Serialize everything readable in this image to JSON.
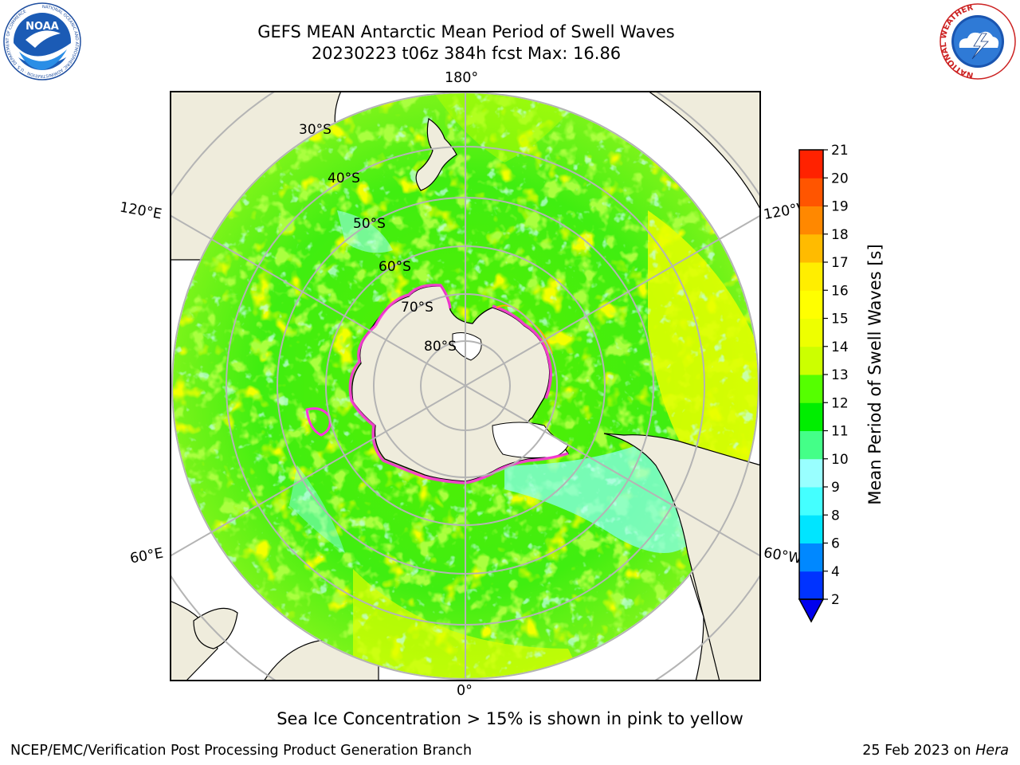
{
  "header": {
    "title_line1": "GEFS MEAN Antarctic Mean Period of Swell Waves",
    "title_line2": "20230223 t06z 384h fcst   Max: 16.86"
  },
  "logos": {
    "noaa_text": "NOAA",
    "noaa_ring_text": "NATIONAL OCEANIC AND ATMOSPHERIC ADMINISTRATION · U.S. DEPARTMENT OF COMMERCE",
    "nws_ring_text": "NATIONAL WEATHER SERVICE"
  },
  "map": {
    "projection": "south-polar-stereographic",
    "longitude_labels": [
      "180°",
      "120°E",
      "120°W",
      "60°E",
      "60°W",
      "0°"
    ],
    "latitude_labels": [
      "30°S",
      "40°S",
      "50°S",
      "60°S",
      "70°S",
      "80°S"
    ]
  },
  "colorbar": {
    "label": "Mean Period of Swell Waves [s]",
    "ticks": [
      "2",
      "4",
      "6",
      "8",
      "9",
      "10",
      "11",
      "12",
      "13",
      "14",
      "15",
      "16",
      "17",
      "18",
      "19",
      "20",
      "21"
    ],
    "colors": [
      "#0033ff",
      "#0088ff",
      "#00e5ff",
      "#44ffff",
      "#99ffff",
      "#44ff88",
      "#00ee00",
      "#55ff00",
      "#ccff00",
      "#eeff00",
      "#ffff00",
      "#ffee00",
      "#ffbb00",
      "#ff8800",
      "#ff5500",
      "#ff2200"
    ],
    "extend_color": "#0000ee"
  },
  "caption": "Sea Ice Concentration > 15% is shown in pink to yellow",
  "footer": {
    "left": "NCEP/EMC/Verification Post Processing Product Generation Branch",
    "right_prefix": "25 Feb 2023 on ",
    "right_italic": "Hera"
  },
  "colors": {
    "land": "#efecdc",
    "ice_edge": "#ff33dd",
    "dominant_swell": "#66ff00",
    "high_swell": "#e6ff00",
    "low_swell": "#88ffee"
  }
}
